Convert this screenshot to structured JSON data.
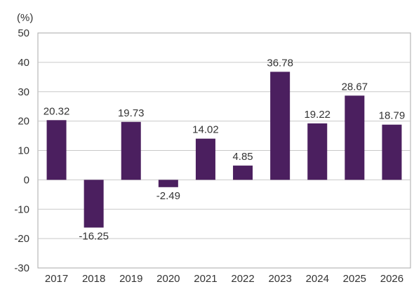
{
  "chart_data": {
    "type": "bar",
    "ylabel": "(%)",
    "categories": [
      "2017",
      "2018",
      "2019",
      "2020",
      "2021",
      "2022",
      "2023",
      "2024",
      "2025",
      "2026"
    ],
    "values": [
      20.32,
      -16.25,
      19.73,
      -2.49,
      14.02,
      4.85,
      36.78,
      19.22,
      28.67,
      18.79
    ],
    "data_labels": [
      "20.32",
      "-16.25",
      "19.73",
      "-2.49",
      "14.02",
      "4.85",
      "36.78",
      "19.22",
      "28.67",
      "18.79"
    ],
    "ylim": [
      -30,
      50
    ],
    "yticks": [
      50,
      40,
      30,
      20,
      10,
      0,
      -10,
      -20,
      -30
    ],
    "ytick_labels": [
      "50",
      "40",
      "30",
      "20",
      "10",
      "0",
      "-10",
      "-20",
      "-30"
    ],
    "grid": true,
    "colors": {
      "bar": "#4b1f5f",
      "grid": "#c9c9c9",
      "frame": "#a8a8a8",
      "background": "#ffffff"
    }
  }
}
